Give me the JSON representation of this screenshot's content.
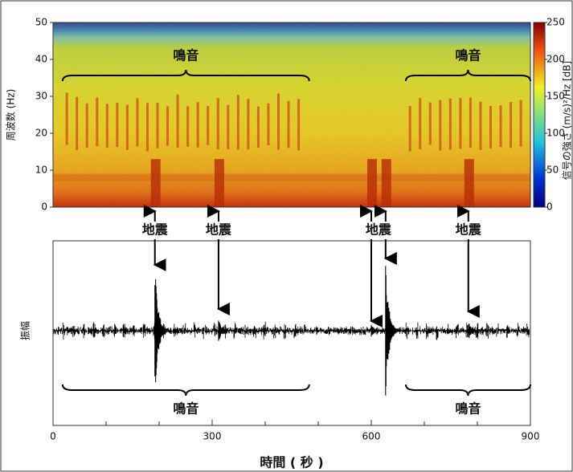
{
  "chart_data": [
    {
      "type": "spectrogram",
      "y_label": "周波数 (Hz)",
      "xlim": [
        0,
        900
      ],
      "ylim": [
        0,
        50
      ],
      "yticks": [
        0,
        10,
        20,
        30,
        40,
        50
      ],
      "colorbar": {
        "label": "信号の強さ (m/s)²/Hz [dB]",
        "lim": [
          0,
          250
        ],
        "ticks": [
          0,
          50,
          100,
          150,
          200,
          250
        ]
      },
      "song_label": "鳴音",
      "song_ranges": [
        [
          18,
          483
        ],
        [
          665,
          900
        ]
      ]
    },
    {
      "type": "waveform",
      "y_label": "振幅",
      "x_label": "時間 ( 秒 )",
      "xlim": [
        0,
        900
      ],
      "xticks": [
        0,
        300,
        600,
        900
      ],
      "minor_xticks": [
        100,
        200,
        400,
        500,
        700,
        800
      ],
      "song_label": "鳴音",
      "song_ranges": [
        [
          18,
          483
        ],
        [
          665,
          900
        ]
      ]
    }
  ],
  "events": {
    "label": "地震",
    "groups": [
      [
        192
      ],
      [
        312
      ],
      [
        600,
        627
      ],
      [
        783
      ]
    ]
  }
}
